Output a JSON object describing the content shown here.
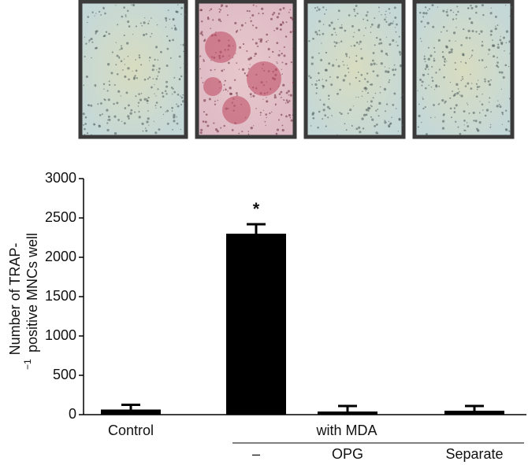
{
  "chart_data": {
    "type": "bar",
    "categories": [
      "Control",
      "–",
      "OPG",
      "Separate"
    ],
    "group_label": "with MDA",
    "values": [
      65,
      2300,
      40,
      50
    ],
    "errors": [
      60,
      120,
      70,
      60
    ],
    "color": "#000000",
    "annotations": [
      {
        "category_index": 1,
        "text": "*"
      }
    ],
    "y_label": [
      "Number of TRAP-",
      "positive MNCs well"
    ],
    "y_label_superscript": "−1",
    "ylim": [
      0,
      3000
    ],
    "yticks": [
      0,
      500,
      1000,
      1500,
      2000,
      2500,
      3000
    ]
  }
}
